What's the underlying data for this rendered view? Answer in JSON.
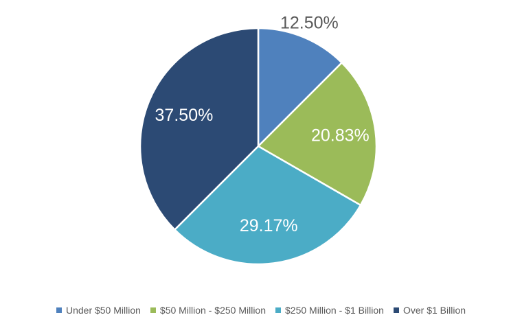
{
  "chart_data": {
    "type": "pie",
    "categories": [
      "Under $50 Million",
      "$50 Million - $250 Million",
      "$250 Million - $1 Billion",
      "Over $1 Billion"
    ],
    "values": [
      12.5,
      20.83,
      29.17,
      37.5
    ],
    "labels": [
      "12.50%",
      "20.83%",
      "29.17%",
      "37.50%"
    ],
    "colors": [
      "#4f81bd",
      "#9bbb59",
      "#4bacc6",
      "#2c4a74"
    ],
    "label_colors": [
      "#595959",
      "#ffffff",
      "#ffffff",
      "#ffffff"
    ],
    "legend_position": "bottom",
    "start_angle": "12 o'clock, clockwise"
  }
}
